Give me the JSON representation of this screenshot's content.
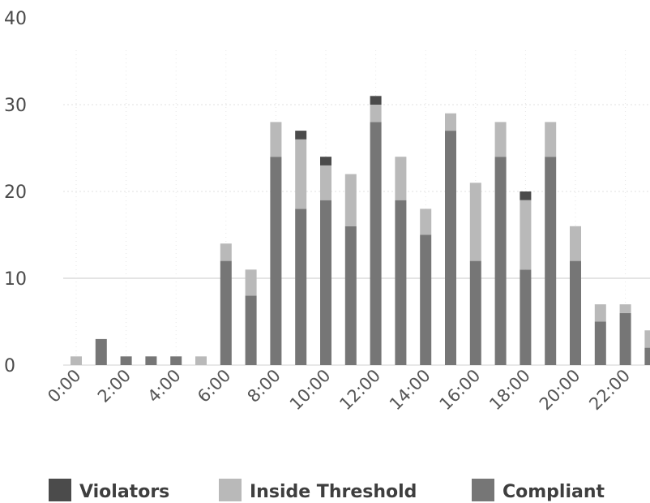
{
  "chart_data": {
    "type": "bar",
    "stacked": true,
    "title": "",
    "xlabel": "",
    "ylabel": "",
    "ylim": [
      0,
      40
    ],
    "yticks": [
      0,
      10,
      20,
      30,
      40
    ],
    "grid": true,
    "legend_position": "bottom",
    "categories": [
      "0:00",
      "1:00",
      "2:00",
      "3:00",
      "4:00",
      "5:00",
      "6:00",
      "7:00",
      "8:00",
      "9:00",
      "10:00",
      "11:00",
      "12:00",
      "13:00",
      "14:00",
      "15:00",
      "16:00",
      "17:00",
      "18:00",
      "19:00",
      "20:00",
      "21:00",
      "22:00",
      "23:00"
    ],
    "x_tick_labels": [
      "0:00",
      "2:00",
      "4:00",
      "6:00",
      "8:00",
      "10:00",
      "12:00",
      "14:00",
      "16:00",
      "18:00",
      "20:00",
      "22:00"
    ],
    "series": [
      {
        "name": "Compliant",
        "color": "#767676",
        "values": [
          0,
          3,
          1,
          1,
          1,
          0,
          12,
          8,
          24,
          18,
          19,
          16,
          28,
          19,
          15,
          27,
          12,
          24,
          11,
          24,
          12,
          5,
          6,
          2
        ]
      },
      {
        "name": "Inside Threshold",
        "color": "#b9b9b9",
        "values": [
          1,
          0,
          0,
          0,
          0,
          1,
          2,
          3,
          4,
          8,
          4,
          6,
          2,
          5,
          3,
          2,
          9,
          4,
          8,
          4,
          4,
          2,
          1,
          2
        ]
      },
      {
        "name": "Violators",
        "color": "#4b4b4b",
        "values": [
          0,
          0,
          0,
          0,
          0,
          0,
          0,
          0,
          0,
          1,
          1,
          0,
          1,
          0,
          0,
          0,
          0,
          0,
          1,
          0,
          0,
          0,
          0,
          0
        ]
      }
    ],
    "legend_order": [
      "Violators",
      "Inside Threshold",
      "Compliant"
    ]
  }
}
